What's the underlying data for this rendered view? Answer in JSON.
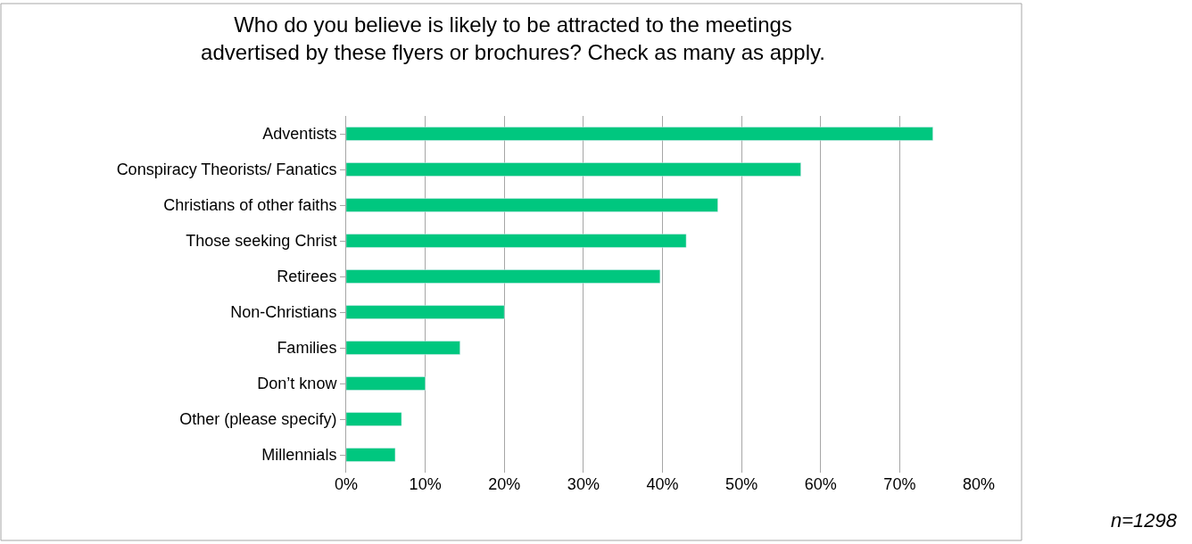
{
  "chart_data": {
    "type": "bar",
    "orientation": "horizontal",
    "title": "Who do you believe is likely to be attracted to the meetings\nadvertised by these flyers or brochures? Check as many as apply.",
    "categories": [
      "Adventists",
      "Conspiracy Theorists/ Fanatics",
      "Christians of other faiths",
      "Those seeking Christ",
      "Retirees",
      "Non-Christians",
      "Families",
      "Don’t know",
      "Other (please specify)",
      "Millennials"
    ],
    "values": [
      74.2,
      57.5,
      47,
      43,
      39.7,
      20,
      14.4,
      10,
      7,
      6.2
    ],
    "color": "#00c77f",
    "xlim": [
      0,
      80
    ],
    "xticks": [
      {
        "value": 0,
        "label": "0%"
      },
      {
        "value": 10,
        "label": "10%"
      },
      {
        "value": 20,
        "label": "20%"
      },
      {
        "value": 30,
        "label": "30%"
      },
      {
        "value": 40,
        "label": "40%"
      },
      {
        "value": 50,
        "label": "50%"
      },
      {
        "value": 60,
        "label": "60%"
      },
      {
        "value": 70,
        "label": "70%"
      },
      {
        "value": 80,
        "label": "80%"
      }
    ],
    "grid": "x",
    "legend": false,
    "annotations": [
      "n=1298"
    ]
  }
}
